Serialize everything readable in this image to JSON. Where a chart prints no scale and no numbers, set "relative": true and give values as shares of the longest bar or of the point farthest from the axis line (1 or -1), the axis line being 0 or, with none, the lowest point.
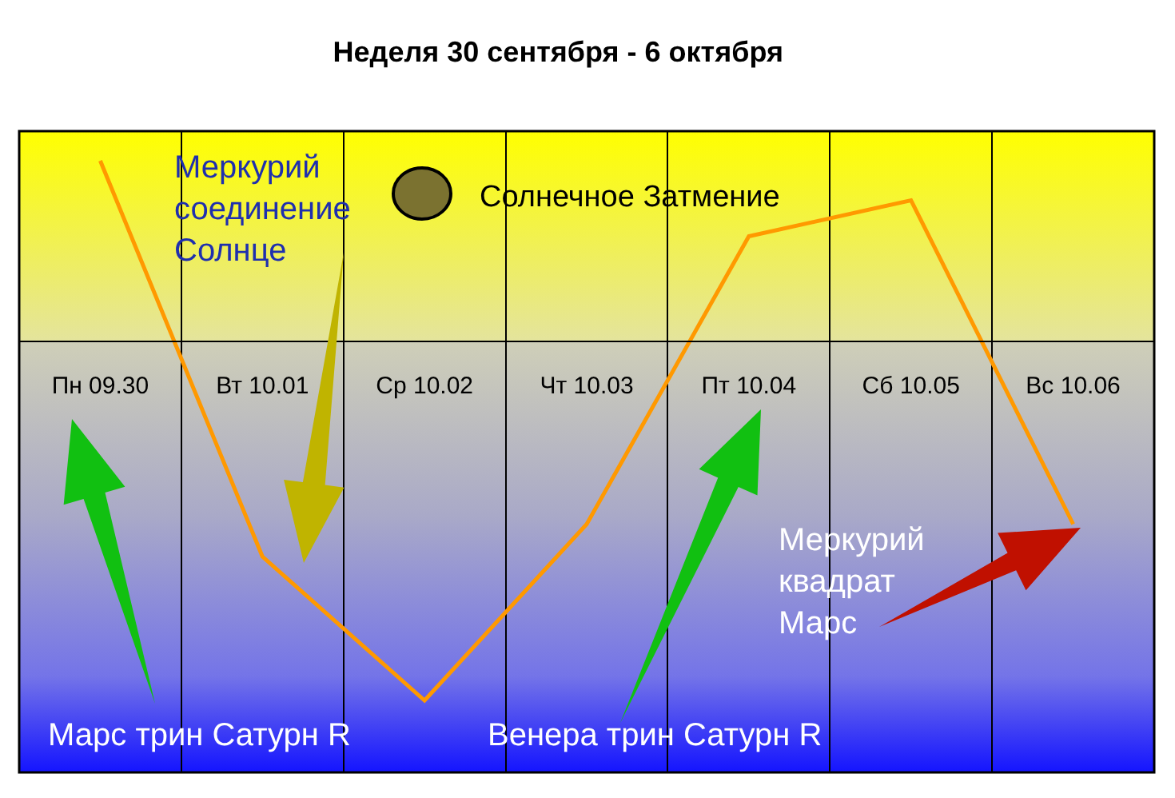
{
  "chart_data": {
    "type": "line",
    "title": "Неделя 30 сентября - 6 октября",
    "relative": true,
    "categories": [
      "Пн 09.30",
      "Вт 10.01",
      "Ср 10.02",
      "Чт 10.03",
      "Пт 10.04",
      "Сб 10.05",
      "Вс 10.06"
    ],
    "series": [
      {
        "color": "#ff9900",
        "values": [
          0.5,
          -0.6,
          -1.0,
          -0.51,
          0.29,
          0.39,
          -0.51
        ]
      }
    ],
    "annotations": [
      "Меркурий\nсоединение\nСолнце",
      "Солнечное Затмение",
      "Марс трин Сатурн R",
      "Венера трин Сатурн R",
      "Меркурий\nквадрат\nМарс"
    ],
    "grid": "x",
    "marker": "none",
    "line_style": "solid"
  }
}
